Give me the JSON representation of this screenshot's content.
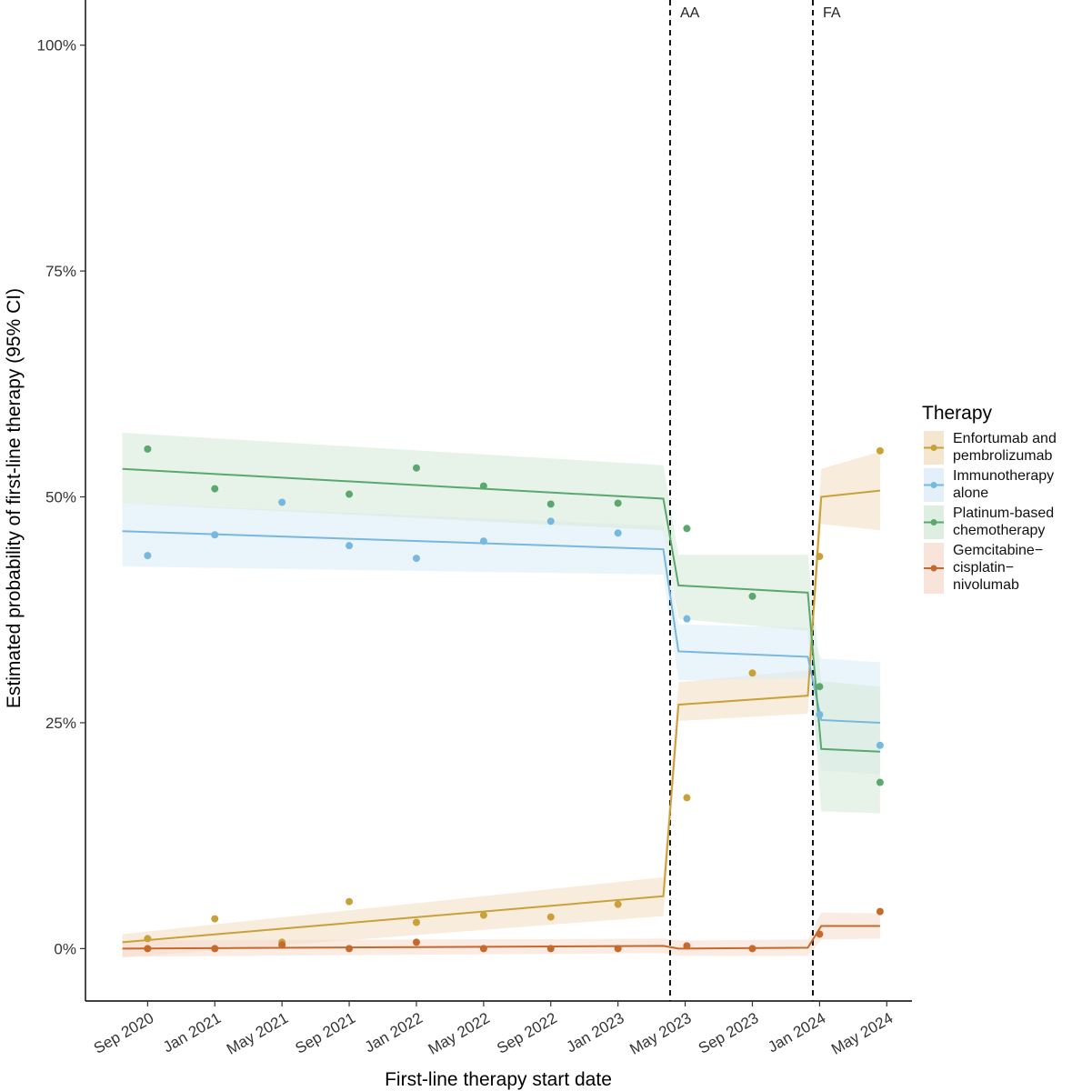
{
  "chart_data": {
    "type": "line",
    "xlabel": "First-line therapy start date",
    "ylabel": "Estimated probability of first-line therapy  (95% CI)",
    "x_ticks": [
      {
        "label": "Sep 2020",
        "t": 0
      },
      {
        "label": "Jan 2021",
        "t": 4
      },
      {
        "label": "May 2021",
        "t": 8
      },
      {
        "label": "Sep 2021",
        "t": 12
      },
      {
        "label": "Jan 2022",
        "t": 16
      },
      {
        "label": "May 2022",
        "t": 20
      },
      {
        "label": "Sep 2022",
        "t": 24
      },
      {
        "label": "Jan 2023",
        "t": 28
      },
      {
        "label": "May 2023",
        "t": 32
      },
      {
        "label": "Sep 2023",
        "t": 36
      },
      {
        "label": "Jan 2024",
        "t": 40
      },
      {
        "label": "May 2024",
        "t": 44
      }
    ],
    "x_unit": "months since Sep 2020",
    "xlim": [
      -3.7,
      45.5
    ],
    "y_ticks": [
      {
        "label": "0%",
        "value": 0
      },
      {
        "label": "25%",
        "value": 25
      },
      {
        "label": "50%",
        "value": 50
      },
      {
        "label": "75%",
        "value": 75
      },
      {
        "label": "100%",
        "value": 100
      }
    ],
    "ylim": [
      -5.8,
      105
    ],
    "vlines": [
      {
        "label": "AA",
        "t": 31.1
      },
      {
        "label": "FA",
        "t": 39.6
      }
    ],
    "legend": {
      "title": "Therapy",
      "position": "right"
    },
    "series": [
      {
        "name": "Enfortumab and pembrolizumab",
        "color": "#c9a13a",
        "ci_color": "#f3e0c4",
        "points": [
          [
            0,
            1.1
          ],
          [
            4,
            3.3
          ],
          [
            8,
            0.7
          ],
          [
            12,
            5.2
          ],
          [
            16,
            2.9
          ],
          [
            20,
            3.7
          ],
          [
            24,
            3.5
          ],
          [
            28,
            4.9
          ],
          [
            32.1,
            16.7
          ],
          [
            36,
            30.5
          ],
          [
            40,
            43.4
          ],
          [
            43.6,
            55.1
          ]
        ],
        "fit": [
          [
            -1.5,
            0.7
          ],
          [
            30.7,
            5.8
          ],
          [
            31.6,
            27.0
          ],
          [
            39.3,
            28.0
          ],
          [
            40.1,
            50.0
          ],
          [
            43.6,
            50.7
          ]
        ],
        "ci": [
          [
            -1.5,
            -1.0,
            1.6
          ],
          [
            30.7,
            3.6,
            7.9
          ],
          [
            31.6,
            25.2,
            29.5
          ],
          [
            39.3,
            26.0,
            30.8
          ],
          [
            40.1,
            47.0,
            53.1
          ],
          [
            43.6,
            46.3,
            55.0
          ]
        ]
      },
      {
        "name": "Immunotherapy alone",
        "color": "#78b8de",
        "ci_color": "#dcecf8",
        "points": [
          [
            0,
            43.5
          ],
          [
            4,
            45.8
          ],
          [
            8,
            49.4
          ],
          [
            12,
            44.6
          ],
          [
            16,
            43.2
          ],
          [
            20,
            45.1
          ],
          [
            24,
            47.3
          ],
          [
            28,
            46.0
          ],
          [
            32.1,
            36.5
          ],
          [
            40,
            25.9
          ],
          [
            43.6,
            22.5
          ]
        ],
        "fit": [
          [
            -1.5,
            46.2
          ],
          [
            30.7,
            44.2
          ],
          [
            31.6,
            32.9
          ],
          [
            39.3,
            32.3
          ],
          [
            40.1,
            25.3
          ],
          [
            43.6,
            25.0
          ]
        ],
        "ci": [
          [
            -1.5,
            42.3,
            49.3
          ],
          [
            30.7,
            41.4,
            46.8
          ],
          [
            31.6,
            29.7,
            35.9
          ],
          [
            39.3,
            29.9,
            35.5
          ],
          [
            40.1,
            19.7,
            32.1
          ],
          [
            43.6,
            19.3,
            31.7
          ]
        ]
      },
      {
        "name": "Platinum-based chemotherapy",
        "color": "#5aa86e",
        "ci_color": "#d7eadb",
        "points": [
          [
            0,
            55.3
          ],
          [
            4,
            50.9
          ],
          [
            12,
            50.3
          ],
          [
            16,
            53.2
          ],
          [
            20,
            51.2
          ],
          [
            24,
            49.2
          ],
          [
            28,
            49.3
          ],
          [
            32.1,
            46.5
          ],
          [
            36,
            39.0
          ],
          [
            40,
            29.0
          ],
          [
            43.6,
            18.4
          ]
        ],
        "fit": [
          [
            -1.5,
            53.1
          ],
          [
            30.7,
            49.8
          ],
          [
            31.6,
            40.2
          ],
          [
            39.3,
            39.4
          ],
          [
            40.1,
            22.1
          ],
          [
            43.6,
            21.8
          ]
        ],
        "ci": [
          [
            -1.5,
            49.3,
            57.1
          ],
          [
            30.7,
            46.3,
            53.5
          ],
          [
            31.6,
            36.5,
            43.6
          ],
          [
            39.3,
            35.2,
            43.6
          ],
          [
            40.1,
            15.2,
            29.6
          ],
          [
            43.6,
            15.0,
            29.0
          ]
        ]
      },
      {
        "name": "Gemcitabine-cisplatin-nivolumab",
        "color": "#c46a2e",
        "ci_color": "#f6ddd1",
        "points": [
          [
            0,
            0.0
          ],
          [
            4,
            0.0
          ],
          [
            8,
            0.4
          ],
          [
            12,
            0.0
          ],
          [
            16,
            0.7
          ],
          [
            20,
            0.0
          ],
          [
            24,
            0.0
          ],
          [
            28,
            0.0
          ],
          [
            32.1,
            0.3
          ],
          [
            36,
            0.0
          ],
          [
            40,
            1.6
          ],
          [
            43.6,
            4.1
          ]
        ],
        "fit": [
          [
            -1.5,
            0.0
          ],
          [
            30.7,
            0.3
          ],
          [
            31.6,
            0.0
          ],
          [
            39.3,
            0.1
          ],
          [
            40.1,
            2.5
          ],
          [
            43.6,
            2.5
          ]
        ],
        "ci": [
          [
            -1.5,
            -0.9,
            0.9
          ],
          [
            30.7,
            -0.5,
            1.1
          ],
          [
            31.6,
            -0.8,
            0.9
          ],
          [
            39.3,
            -0.8,
            1.0
          ],
          [
            40.1,
            1.0,
            4.0
          ],
          [
            43.6,
            1.1,
            3.9
          ]
        ]
      }
    ]
  },
  "legend_lines": [
    [
      "Enfortumab and",
      "pembrolizumab"
    ],
    [
      "Immunotherapy",
      "alone"
    ],
    [
      "Platinum-based",
      "chemotherapy"
    ],
    [
      "Gemcitabine−",
      "cisplatin−",
      "nivolumab"
    ]
  ]
}
